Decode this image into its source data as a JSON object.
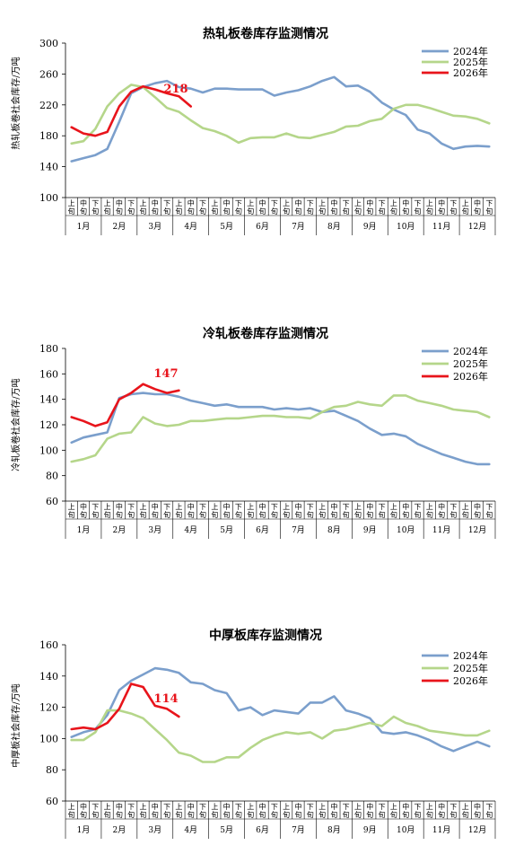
{
  "months": [
    "1月",
    "2月",
    "3月",
    "4月",
    "5月",
    "6月",
    "7月",
    "8月",
    "9月",
    "10月",
    "11月",
    "12月"
  ],
  "xun": [
    "上旬",
    "中旬",
    "下旬"
  ],
  "colors": {
    "y2024": "#7b9fcc",
    "y2025": "#b5d68a",
    "y2026": "#e8141b"
  },
  "chart_data": [
    {
      "type": "line",
      "title": "热轧板卷库存监测情况",
      "ylabel": "热轧板卷社会库存/万吨",
      "ylim": [
        100,
        300
      ],
      "yticks": [
        100,
        140,
        180,
        220,
        260,
        300
      ],
      "end_label": "218",
      "legend": "top-right",
      "grid": false,
      "series": [
        {
          "name": "2024年",
          "values": [
            147,
            151,
            155,
            163,
            198,
            235,
            243,
            248,
            251,
            243,
            241,
            236,
            241,
            241,
            240,
            240,
            240,
            232,
            236,
            239,
            244,
            251,
            256,
            244,
            245,
            237,
            223,
            214,
            207,
            188,
            183,
            170,
            163,
            166,
            167,
            166
          ]
        },
        {
          "name": "2025年",
          "values": [
            170,
            173,
            189,
            218,
            235,
            246,
            243,
            230,
            216,
            211,
            200,
            190,
            186,
            180,
            171,
            177,
            178,
            178,
            183,
            178,
            177,
            181,
            185,
            192,
            193,
            199,
            202,
            215,
            220,
            220,
            216,
            211,
            206,
            205,
            202,
            196
          ]
        },
        {
          "name": "2026年",
          "values": [
            191,
            183,
            180,
            185,
            218,
            237,
            244,
            240,
            235,
            231,
            218
          ]
        }
      ]
    },
    {
      "type": "line",
      "title": "冷轧板卷库存监测情况",
      "ylabel": "冷轧板卷社会库存/万吨",
      "ylim": [
        60,
        180
      ],
      "yticks": [
        60,
        80,
        100,
        120,
        140,
        160,
        180
      ],
      "end_label": "147",
      "legend": "top-right",
      "grid": false,
      "series": [
        {
          "name": "2024年",
          "values": [
            106,
            110,
            112,
            114,
            141,
            144,
            145,
            144,
            144,
            142,
            139,
            137,
            135,
            136,
            134,
            134,
            134,
            132,
            133,
            132,
            133,
            130,
            131,
            127,
            123,
            117,
            112,
            113,
            111,
            105,
            101,
            97,
            94,
            91,
            89,
            89
          ]
        },
        {
          "name": "2025年",
          "values": [
            91,
            93,
            96,
            109,
            113,
            114,
            126,
            121,
            119,
            120,
            123,
            123,
            124,
            125,
            125,
            126,
            127,
            127,
            126,
            126,
            125,
            130,
            134,
            135,
            138,
            136,
            135,
            143,
            143,
            139,
            137,
            135,
            132,
            131,
            130,
            126
          ]
        },
        {
          "name": "2026年",
          "values": [
            126,
            123,
            119,
            122,
            140,
            145,
            152,
            148,
            145,
            147
          ]
        }
      ]
    },
    {
      "type": "line",
      "title": "中厚板库存监测情况",
      "ylabel": "中厚板社会库存/万吨",
      "ylim": [
        60,
        160
      ],
      "yticks": [
        60,
        80,
        100,
        120,
        140,
        160
      ],
      "end_label": "114",
      "legend": "top-right",
      "grid": false,
      "series": [
        {
          "name": "2024年",
          "values": [
            101,
            104,
            106,
            115,
            131,
            137,
            141,
            145,
            144,
            142,
            136,
            135,
            131,
            129,
            118,
            120,
            115,
            118,
            117,
            116,
            123,
            123,
            127,
            118,
            116,
            113,
            104,
            103,
            104,
            102,
            99,
            95,
            92,
            95,
            98,
            95
          ]
        },
        {
          "name": "2025年",
          "values": [
            99,
            99,
            104,
            118,
            118,
            116,
            113,
            106,
            99,
            91,
            89,
            85,
            85,
            88,
            88,
            94,
            99,
            102,
            104,
            103,
            104,
            100,
            105,
            106,
            108,
            110,
            108,
            114,
            110,
            108,
            105,
            104,
            103,
            102,
            102,
            105
          ]
        },
        {
          "name": "2026年",
          "values": [
            106,
            107,
            106,
            110,
            119,
            135,
            133,
            121,
            119,
            114
          ]
        }
      ]
    }
  ]
}
